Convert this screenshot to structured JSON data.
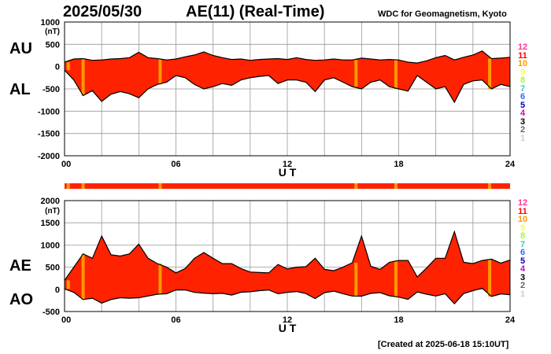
{
  "header": {
    "date": "2025/05/30",
    "title": "AE(11) (Real-Time)",
    "source": "WDC for Geomagnetism, Kyoto",
    "created": "[Created at 2025-06-18 15:10UT]"
  },
  "labels": {
    "au": "AU",
    "al": "AL",
    "ae": "AE",
    "ao": "AO"
  },
  "station_scale": {
    "values": [
      "12",
      "11",
      "10",
      "9",
      "8",
      "7",
      "6",
      "5",
      "4",
      "3",
      "2",
      "1"
    ],
    "colors": [
      "#ff3399",
      "#ff0000",
      "#ff9900",
      "#ffff33",
      "#99ff33",
      "#33cccc",
      "#3366ff",
      "#0000cc",
      "#cc00cc",
      "#000000",
      "#666666",
      "#cccccc"
    ]
  },
  "colors": {
    "fill": "#ff2200",
    "bar_orange": "#ff9900",
    "line": "#000000",
    "grid": "#999999"
  },
  "chart_data": [
    {
      "type": "area",
      "name": "AU/AL",
      "xlabel": "U T",
      "ylabel_unit": "(nT)",
      "xlim": [
        0,
        24
      ],
      "ylim": [
        -2000,
        1000
      ],
      "yticks": [
        1000,
        500,
        0,
        -500,
        -1000,
        -1500,
        -2000
      ],
      "ytick_labels": [
        "1000",
        "500",
        "0",
        "-500",
        "-1000",
        "-1500",
        "-2000"
      ],
      "xticks": [
        0,
        6,
        12,
        18,
        24
      ],
      "xtick_labels": [
        "00",
        "06",
        "12",
        "18",
        "24"
      ],
      "grid": true,
      "x": [
        0,
        0.5,
        1,
        1.5,
        2,
        2.5,
        3,
        3.5,
        4,
        4.5,
        5,
        5.5,
        6,
        6.5,
        7,
        7.5,
        8,
        8.5,
        9,
        9.5,
        10,
        10.5,
        11,
        11.5,
        12,
        12.5,
        13,
        13.5,
        14,
        14.5,
        15,
        15.5,
        16,
        16.5,
        17,
        17.5,
        18,
        18.5,
        19,
        19.5,
        20,
        20.5,
        21,
        21.5,
        22,
        22.5,
        23,
        23.5,
        24
      ],
      "series": [
        {
          "name": "AU",
          "values": [
            100,
            170,
            180,
            140,
            150,
            170,
            180,
            200,
            320,
            200,
            180,
            150,
            170,
            220,
            260,
            330,
            250,
            200,
            160,
            170,
            140,
            160,
            170,
            180,
            160,
            200,
            160,
            140,
            150,
            170,
            150,
            150,
            190,
            170,
            150,
            160,
            150,
            100,
            80,
            130,
            200,
            250,
            150,
            210,
            260,
            350,
            180,
            190,
            210
          ]
        },
        {
          "name": "AL",
          "values": [
            -80,
            -300,
            -650,
            -540,
            -780,
            -620,
            -560,
            -610,
            -700,
            -500,
            -400,
            -350,
            -200,
            -250,
            -400,
            -500,
            -450,
            -380,
            -420,
            -300,
            -250,
            -220,
            -200,
            -380,
            -300,
            -300,
            -350,
            -560,
            -300,
            -250,
            -350,
            -450,
            -500,
            -350,
            -300,
            -450,
            -500,
            -550,
            -200,
            -350,
            -500,
            -450,
            -800,
            -400,
            -320,
            -300,
            -500,
            -400,
            -450
          ]
        }
      ],
      "orange_bars_ut": [
        0.2,
        1.0,
        5.15,
        15.7,
        17.85,
        22.9
      ]
    },
    {
      "type": "area",
      "name": "AE/AO",
      "xlabel": "U T",
      "ylabel_unit": "(nT)",
      "xlim": [
        0,
        24
      ],
      "ylim": [
        -500,
        2000
      ],
      "yticks": [
        2000,
        1500,
        1000,
        500,
        0,
        -500
      ],
      "ytick_labels": [
        "2000",
        "1500",
        "1000",
        "500",
        "0",
        "-500"
      ],
      "xticks": [
        0,
        6,
        12,
        18,
        24
      ],
      "xtick_labels": [
        "00",
        "06",
        "12",
        "18",
        "24"
      ],
      "grid": true,
      "x": [
        0,
        0.5,
        1,
        1.5,
        2,
        2.5,
        3,
        3.5,
        4,
        4.5,
        5,
        5.5,
        6,
        6.5,
        7,
        7.5,
        8,
        8.5,
        9,
        9.5,
        10,
        10.5,
        11,
        11.5,
        12,
        12.5,
        13,
        13.5,
        14,
        14.5,
        15,
        15.5,
        16,
        16.5,
        17,
        17.5,
        18,
        18.5,
        19,
        19.5,
        20,
        20.5,
        21,
        21.5,
        22,
        22.5,
        23,
        23.5,
        24
      ],
      "series": [
        {
          "name": "AE",
          "values": [
            200,
            500,
            800,
            700,
            1200,
            780,
            750,
            800,
            1020,
            700,
            580,
            500,
            370,
            470,
            700,
            830,
            700,
            580,
            580,
            470,
            390,
            380,
            370,
            560,
            460,
            500,
            510,
            700,
            450,
            420,
            500,
            600,
            1200,
            520,
            450,
            610,
            650,
            650,
            280,
            480,
            700,
            700,
            1300,
            610,
            580,
            650,
            680,
            590,
            660
          ]
        },
        {
          "name": "AO",
          "values": [
            10,
            -70,
            -230,
            -200,
            -310,
            -230,
            -190,
            -200,
            -190,
            -150,
            -110,
            -100,
            -15,
            -15,
            -70,
            -85,
            -100,
            -90,
            -130,
            -65,
            -55,
            -30,
            -15,
            -100,
            -70,
            -50,
            -95,
            -210,
            -75,
            -40,
            -100,
            -150,
            -155,
            -90,
            -75,
            -145,
            -175,
            -225,
            -60,
            -110,
            -150,
            -100,
            -325,
            -95,
            -30,
            25,
            -160,
            -105,
            -120
          ]
        }
      ],
      "orange_bars_ut": [
        0.2,
        1.0,
        5.15,
        15.7,
        17.85,
        22.9
      ]
    }
  ]
}
